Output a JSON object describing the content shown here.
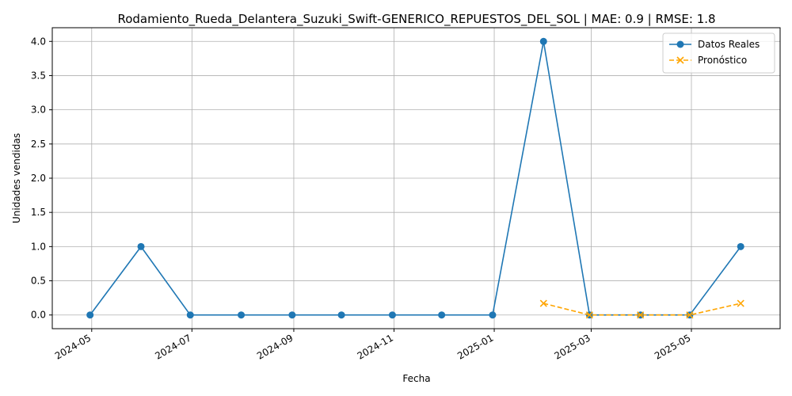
{
  "chart_data": {
    "type": "line",
    "title": "Rodamiento_Rueda_Delantera_Suzuki_Swift-GENERICO_REPUESTOS_DEL_SOL | MAE: 0.9 | RMSE: 1.8",
    "xlabel": "Fecha",
    "ylabel": "Unidades vendidas",
    "x_ticks": [
      "2024-05",
      "2024-07",
      "2024-09",
      "2024-11",
      "2025-01",
      "2025-03",
      "2025-05"
    ],
    "y_ticks": [
      "0.0",
      "0.5",
      "1.0",
      "1.5",
      "2.0",
      "2.5",
      "3.0",
      "3.5",
      "4.0"
    ],
    "ylim": [
      -0.2,
      4.2
    ],
    "xlim": [
      "2024-04-07",
      "2025-06-24"
    ],
    "grid": true,
    "legend_position": "top-right",
    "series": [
      {
        "name": "Datos Reales",
        "color": "#1f77b4",
        "marker": "circle",
        "linestyle": "solid",
        "x": [
          "2024-04-30",
          "2024-05-31",
          "2024-06-30",
          "2024-07-31",
          "2024-08-31",
          "2024-09-30",
          "2024-10-31",
          "2024-11-30",
          "2024-12-31",
          "2025-01-31",
          "2025-02-28",
          "2025-03-31",
          "2025-04-30",
          "2025-05-31"
        ],
        "values": [
          0,
          1,
          0,
          0,
          0,
          0,
          0,
          0,
          0,
          4,
          0,
          0,
          0,
          1
        ]
      },
      {
        "name": "Pronóstico",
        "color": "#ffa500",
        "marker": "x",
        "linestyle": "dashed",
        "x": [
          "2025-01-31",
          "2025-02-28",
          "2025-03-31",
          "2025-04-30",
          "2025-05-31"
        ],
        "values": [
          0.17,
          0,
          0,
          0,
          0.17
        ]
      }
    ]
  }
}
